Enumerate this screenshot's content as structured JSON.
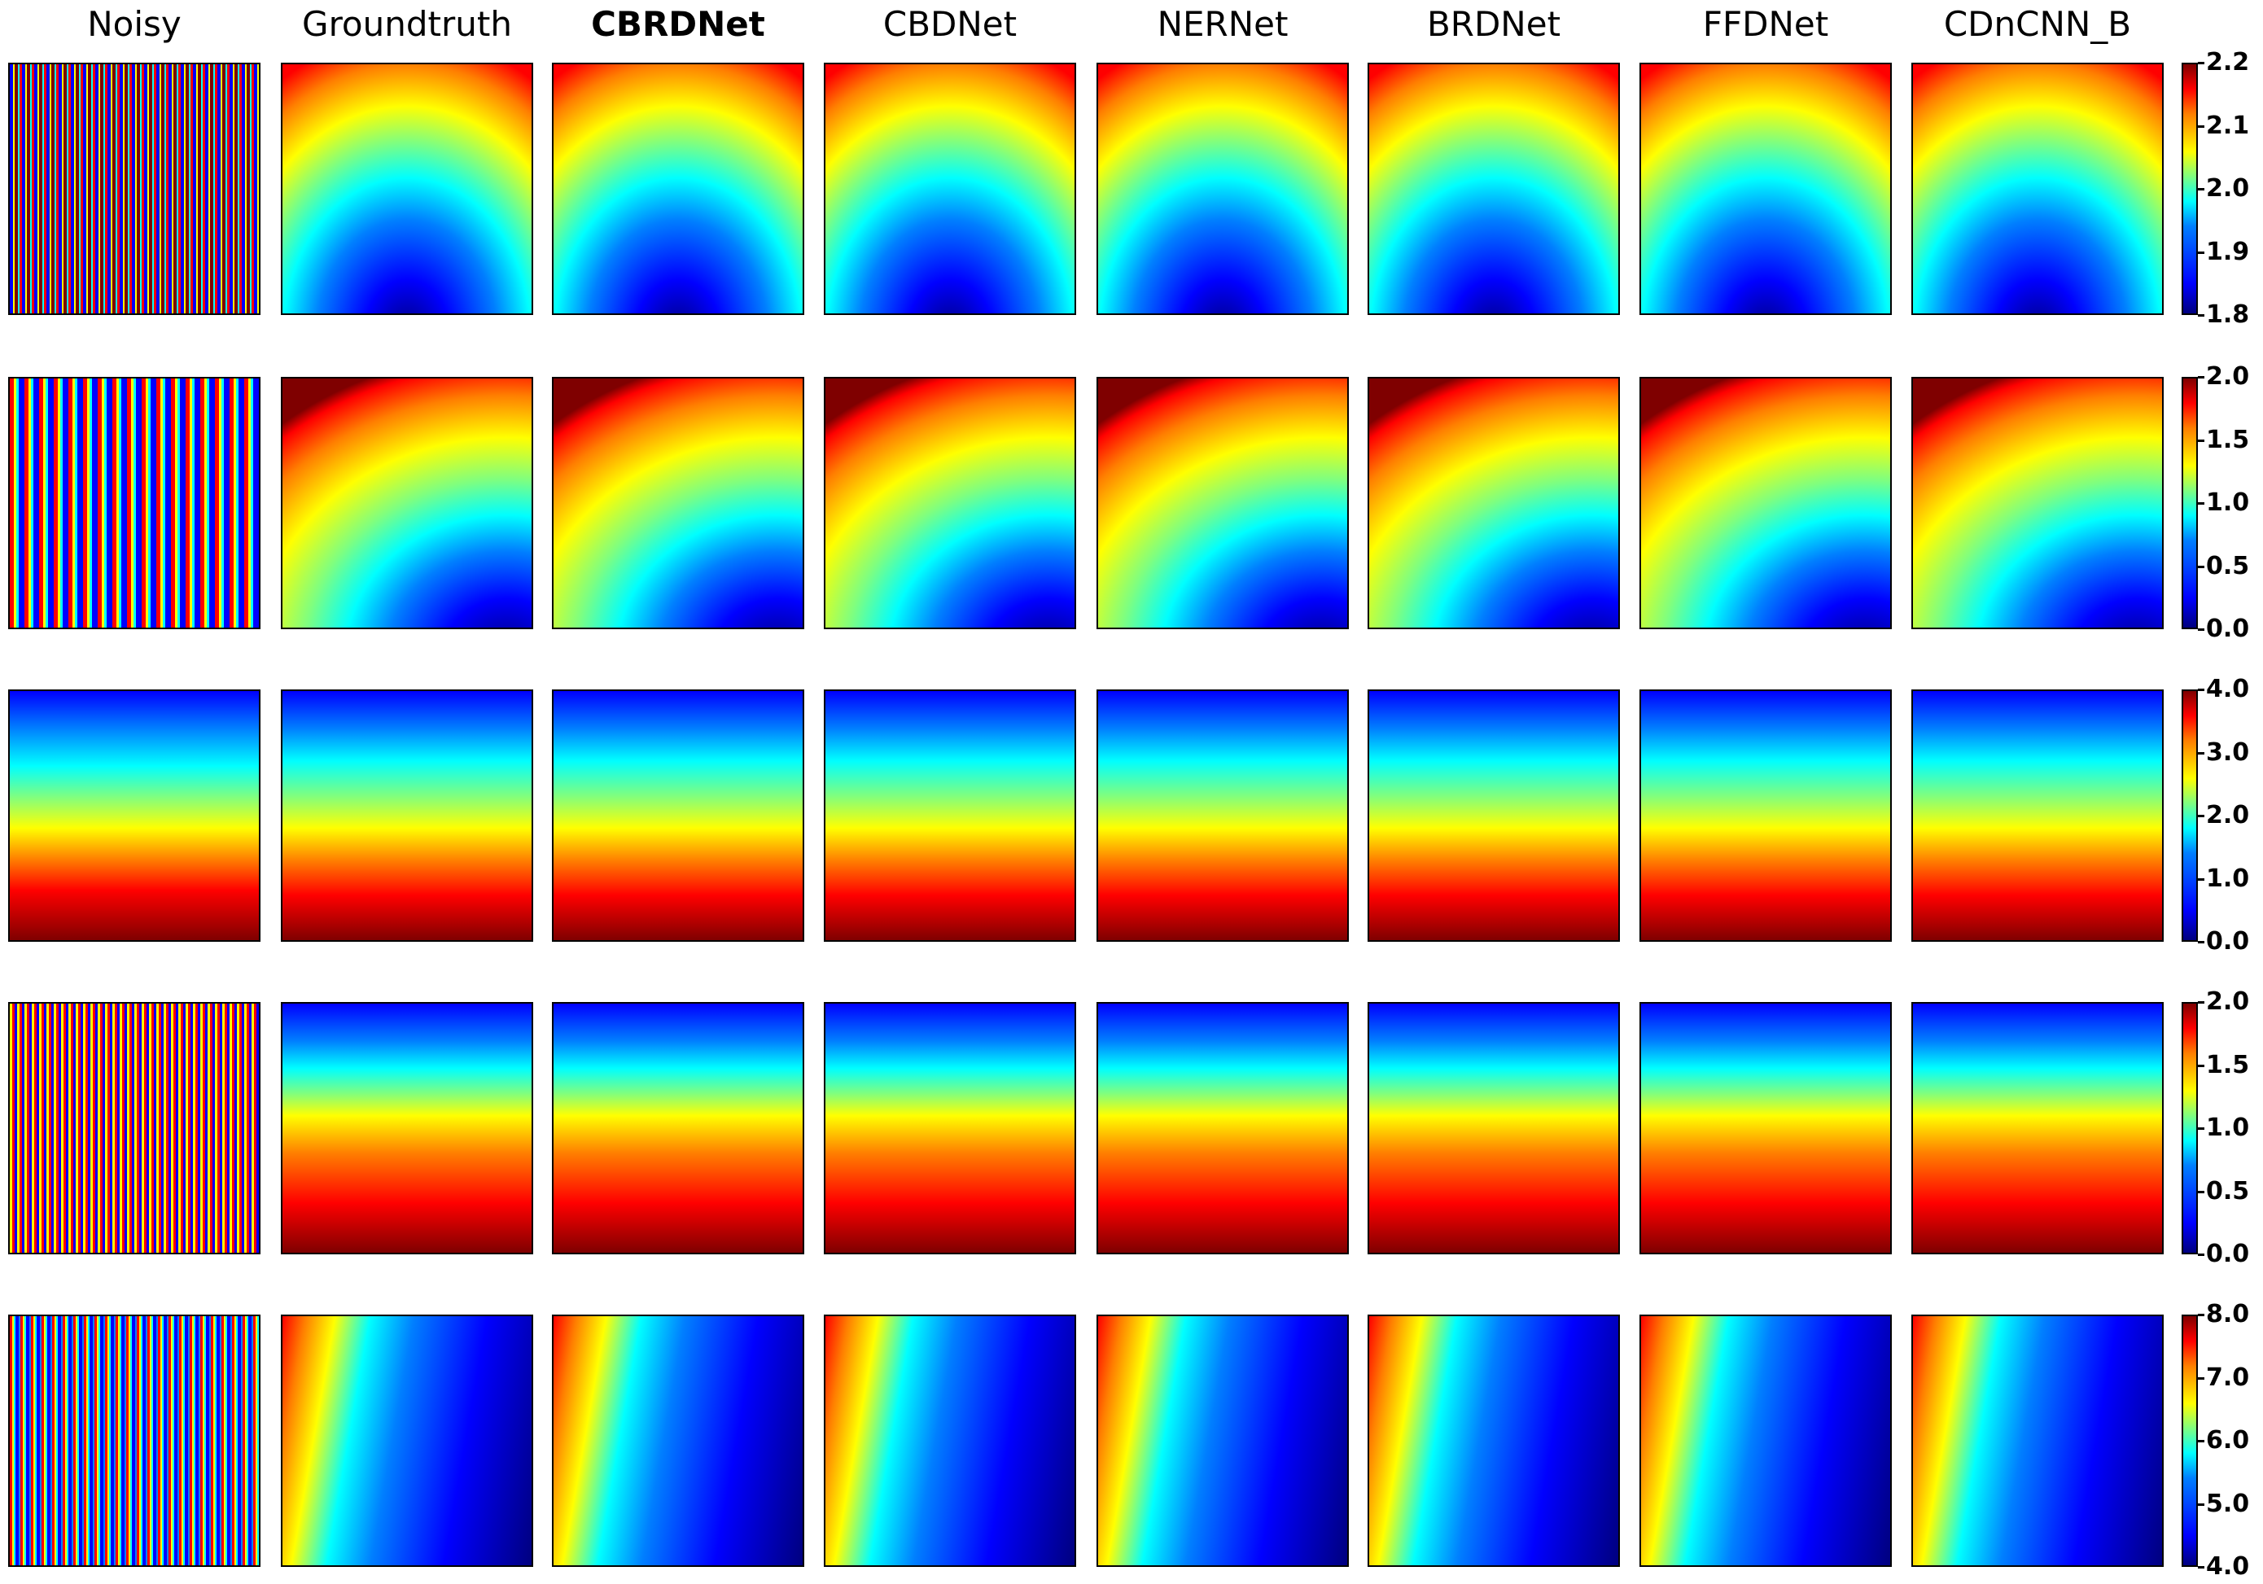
{
  "columns": [
    "Noisy",
    "Groundtruth",
    "CBRDNet",
    "CBDNet",
    "NERNet",
    "BRDNet",
    "FFDNet",
    "CDnCNN_B"
  ],
  "bold_column": "CBRDNet",
  "rows": [
    {
      "pattern": "arch",
      "colorbar_ticks": [
        "2.2",
        "2.1",
        "2.0",
        "1.9",
        "1.8"
      ]
    },
    {
      "pattern": "corner",
      "colorbar_ticks": [
        "2.0",
        "1.5",
        "1.0",
        "0.5",
        "0.0"
      ]
    },
    {
      "pattern": "band",
      "colorbar_ticks": [
        "4.0",
        "3.0",
        "2.0",
        "1.0",
        "0.0"
      ]
    },
    {
      "pattern": "band2",
      "colorbar_ticks": [
        "2.0",
        "1.5",
        "1.0",
        "0.5",
        "0.0"
      ]
    },
    {
      "pattern": "diag",
      "colorbar_ticks": [
        "8.0",
        "7.0",
        "6.0",
        "5.0",
        "4.0"
      ]
    }
  ],
  "colormap": "jet"
}
